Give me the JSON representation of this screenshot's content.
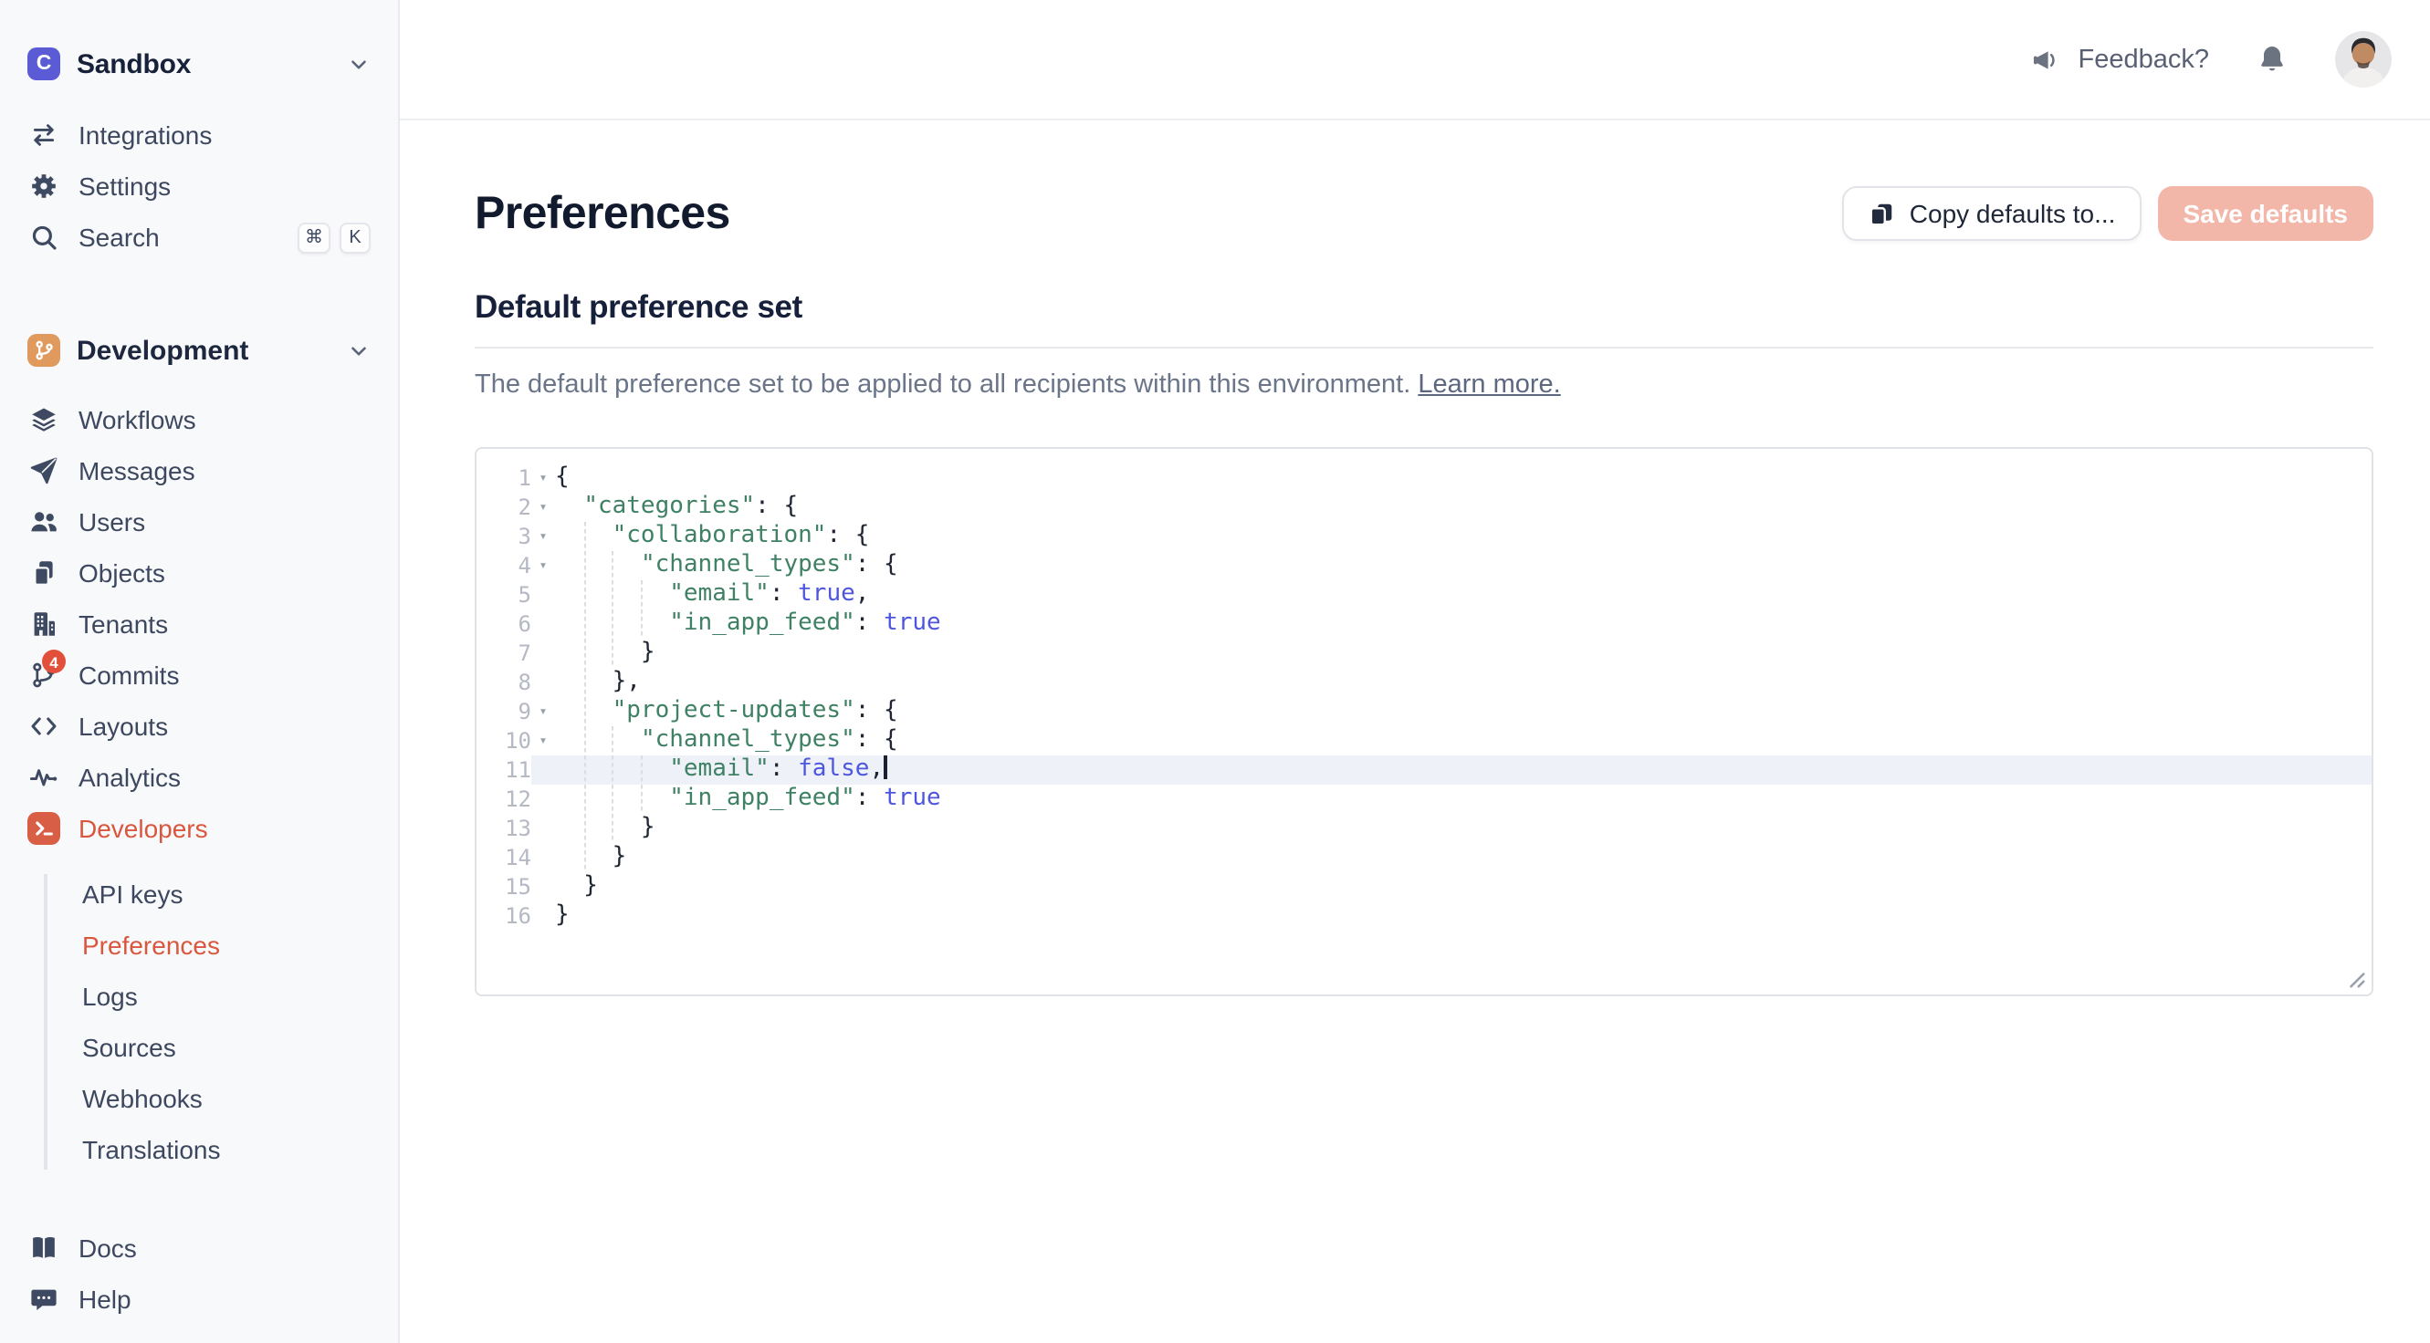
{
  "workspace": {
    "name": "Sandbox",
    "logo_letter": "C"
  },
  "sidebar": {
    "top_items": [
      {
        "label": "Integrations",
        "icon": "integrations"
      },
      {
        "label": "Settings",
        "icon": "settings"
      },
      {
        "label": "Search",
        "icon": "search",
        "shortcut": [
          "⌘",
          "K"
        ]
      }
    ],
    "environment": {
      "name": "Development",
      "icon": "git-branch"
    },
    "env_items": [
      {
        "label": "Workflows",
        "icon": "workflows"
      },
      {
        "label": "Messages",
        "icon": "messages"
      },
      {
        "label": "Users",
        "icon": "users"
      },
      {
        "label": "Objects",
        "icon": "objects"
      },
      {
        "label": "Tenants",
        "icon": "tenants"
      },
      {
        "label": "Commits",
        "icon": "commits",
        "badge": "4"
      },
      {
        "label": "Layouts",
        "icon": "layouts"
      },
      {
        "label": "Analytics",
        "icon": "analytics"
      },
      {
        "label": "Developers",
        "icon": "developers",
        "active": true
      }
    ],
    "developers_subitems": [
      {
        "label": "API keys"
      },
      {
        "label": "Preferences",
        "active": true
      },
      {
        "label": "Logs"
      },
      {
        "label": "Sources"
      },
      {
        "label": "Webhooks"
      },
      {
        "label": "Translations"
      }
    ],
    "bottom_items": [
      {
        "label": "Docs",
        "icon": "docs"
      },
      {
        "label": "Help",
        "icon": "help"
      }
    ]
  },
  "header": {
    "feedback_label": "Feedback?"
  },
  "page": {
    "title": "Preferences",
    "copy_button_label": "Copy defaults to...",
    "save_button_label": "Save defaults",
    "section_title": "Default preference set",
    "description": "The default preference set to be applied to all recipients within this environment.",
    "learn_more_label": "Learn more."
  },
  "editor": {
    "active_line": 11,
    "lines": [
      {
        "num": 1,
        "fold": true,
        "segments": [
          [
            "p",
            "{"
          ]
        ]
      },
      {
        "num": 2,
        "fold": true,
        "segments": [
          [
            "p",
            "  "
          ],
          [
            "k",
            "\"categories\""
          ],
          [
            "p",
            ": {"
          ]
        ]
      },
      {
        "num": 3,
        "fold": true,
        "segments": [
          [
            "p",
            "    "
          ],
          [
            "k",
            "\"collaboration\""
          ],
          [
            "p",
            ": {"
          ]
        ]
      },
      {
        "num": 4,
        "fold": true,
        "segments": [
          [
            "p",
            "      "
          ],
          [
            "k",
            "\"channel_types\""
          ],
          [
            "p",
            ": {"
          ]
        ]
      },
      {
        "num": 5,
        "fold": false,
        "segments": [
          [
            "p",
            "        "
          ],
          [
            "k",
            "\"email\""
          ],
          [
            "p",
            ": "
          ],
          [
            "b",
            "true"
          ],
          [
            "p",
            ","
          ]
        ]
      },
      {
        "num": 6,
        "fold": false,
        "segments": [
          [
            "p",
            "        "
          ],
          [
            "k",
            "\"in_app_feed\""
          ],
          [
            "p",
            ": "
          ],
          [
            "b",
            "true"
          ]
        ]
      },
      {
        "num": 7,
        "fold": false,
        "segments": [
          [
            "p",
            "      }"
          ]
        ]
      },
      {
        "num": 8,
        "fold": false,
        "segments": [
          [
            "p",
            "    },"
          ]
        ]
      },
      {
        "num": 9,
        "fold": true,
        "segments": [
          [
            "p",
            "    "
          ],
          [
            "k",
            "\"project-updates\""
          ],
          [
            "p",
            ": {"
          ]
        ]
      },
      {
        "num": 10,
        "fold": true,
        "segments": [
          [
            "p",
            "      "
          ],
          [
            "k",
            "\"channel_types\""
          ],
          [
            "p",
            ": {"
          ]
        ]
      },
      {
        "num": 11,
        "fold": false,
        "segments": [
          [
            "p",
            "        "
          ],
          [
            "k",
            "\"email\""
          ],
          [
            "p",
            ": "
          ],
          [
            "b",
            "false"
          ],
          [
            "p",
            ","
          ]
        ]
      },
      {
        "num": 12,
        "fold": false,
        "segments": [
          [
            "p",
            "        "
          ],
          [
            "k",
            "\"in_app_feed\""
          ],
          [
            "p",
            ": "
          ],
          [
            "b",
            "true"
          ]
        ]
      },
      {
        "num": 13,
        "fold": false,
        "segments": [
          [
            "p",
            "      }"
          ]
        ]
      },
      {
        "num": 14,
        "fold": false,
        "segments": [
          [
            "p",
            "    }"
          ]
        ]
      },
      {
        "num": 15,
        "fold": false,
        "segments": [
          [
            "p",
            "  }"
          ]
        ]
      },
      {
        "num": 16,
        "fold": false,
        "segments": [
          [
            "p",
            "}"
          ]
        ]
      }
    ],
    "guides": [
      {
        "col": 2,
        "from": 3,
        "to": 14
      },
      {
        "col": 4,
        "from": 4,
        "to": 7
      },
      {
        "col": 4,
        "from": 10,
        "to": 13
      },
      {
        "col": 6,
        "from": 5,
        "to": 6
      },
      {
        "col": 6,
        "from": 11,
        "to": 12
      }
    ]
  },
  "colors": {
    "sidebar_bg": "#F8F9FA",
    "accent": "#D9573E",
    "dev_tile": "#D85F46",
    "env_tile": "#E09A5E",
    "logo_bg": "#5B5BD6",
    "text_dark": "#1A2336",
    "text_nav": "#3D4860",
    "text_muted": "#6A7589",
    "badge": "#E2503C",
    "save_bg": "#F2B7A9",
    "key_color": "#3F8164",
    "bool_color": "#4E56E0",
    "active_line_bg": "#EEF1F8"
  }
}
